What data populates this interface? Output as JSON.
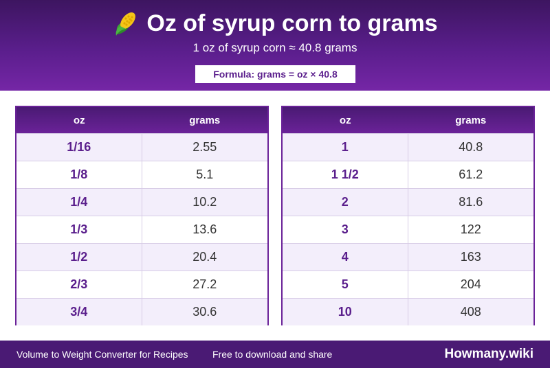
{
  "header": {
    "icon": "corn-icon",
    "title": "Oz of syrup corn to grams",
    "subtitle": "1 oz of syrup corn ≈ 40.8 grams",
    "formula": "Formula: grams = oz × 40.8"
  },
  "tables": [
    {
      "headers": [
        "oz",
        "grams"
      ],
      "rows": [
        [
          "1/16",
          "2.55"
        ],
        [
          "1/8",
          "5.1"
        ],
        [
          "1/4",
          "10.2"
        ],
        [
          "1/3",
          "13.6"
        ],
        [
          "1/2",
          "20.4"
        ],
        [
          "2/3",
          "27.2"
        ],
        [
          "3/4",
          "30.6"
        ]
      ]
    },
    {
      "headers": [
        "oz",
        "grams"
      ],
      "rows": [
        [
          "1",
          "40.8"
        ],
        [
          "1 1/2",
          "61.2"
        ],
        [
          "2",
          "81.6"
        ],
        [
          "3",
          "122"
        ],
        [
          "4",
          "163"
        ],
        [
          "5",
          "204"
        ],
        [
          "10",
          "408"
        ]
      ]
    }
  ],
  "footer": {
    "left": "Volume to Weight Converter for Recipes",
    "middle": "Free to download and share",
    "brand": "Howmany.wiki"
  },
  "colors": {
    "header_dark": "#3d1560",
    "header_light": "#7526a6",
    "accent": "#5a1e8c",
    "row_alt": "#f3eefb"
  }
}
